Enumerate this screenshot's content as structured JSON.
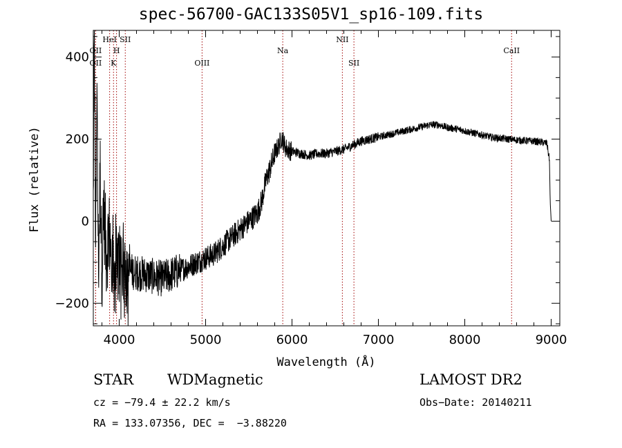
{
  "chart_data": {
    "type": "line",
    "title": "spec-56700-GAC133S05V1_sp16-109.fits",
    "xlabel": "Wavelength (Å)",
    "ylabel": "Flux (relative)",
    "xlim": [
      3700,
      9100
    ],
    "ylim": [
      -255,
      465
    ],
    "x_ticks": [
      4000,
      5000,
      6000,
      7000,
      8000,
      9000
    ],
    "y_ticks": [
      -200,
      0,
      200,
      400
    ],
    "grid": false,
    "series": [
      {
        "x": [
          3700,
          3712,
          3725,
          3740,
          3760,
          3780,
          3800,
          3820,
          3850,
          3880,
          3910,
          3950,
          4000,
          4050,
          4100,
          4200,
          4300,
          4400,
          4500,
          4600,
          4700,
          4800,
          4900,
          5000,
          5100,
          5200,
          5300,
          5400,
          5500,
          5600,
          5650,
          5700,
          5750,
          5800,
          5850,
          5880,
          5900,
          5920,
          5950,
          6000,
          6100,
          6200,
          6300,
          6400,
          6500,
          6600,
          6700,
          6800,
          6900,
          7000,
          7100,
          7200,
          7300,
          7400,
          7500,
          7600,
          7700,
          7800,
          7900,
          8000,
          8100,
          8200,
          8300,
          8400,
          8500,
          8600,
          8700,
          8800,
          8900,
          8950,
          8980,
          8990,
          9000
        ],
        "y": [
          40,
          470,
          -100,
          330,
          -120,
          120,
          -120,
          40,
          -80,
          -30,
          -60,
          -130,
          -100,
          -110,
          -120,
          -125,
          -130,
          -135,
          -140,
          -130,
          -120,
          -110,
          -100,
          -90,
          -80,
          -60,
          -40,
          -20,
          0,
          20,
          50,
          100,
          130,
          165,
          185,
          205,
          195,
          180,
          175,
          170,
          165,
          160,
          165,
          165,
          170,
          175,
          185,
          195,
          200,
          205,
          210,
          215,
          220,
          225,
          230,
          235,
          235,
          228,
          225,
          220,
          215,
          210,
          205,
          202,
          200,
          198,
          196,
          195,
          192,
          190,
          150,
          40,
          0
        ]
      }
    ],
    "lines": [
      {
        "label": "OII",
        "x": 3727,
        "row": 2
      },
      {
        "label": "OII",
        "x": 3727,
        "row": 3
      },
      {
        "label": "HeI",
        "x": 3889,
        "row": 1
      },
      {
        "label": "H",
        "x": 3969,
        "row": 2
      },
      {
        "label": "K",
        "x": 3934,
        "row": 3
      },
      {
        "label": "SII",
        "x": 4070,
        "row": 1
      },
      {
        "label": "OIII",
        "x": 4959,
        "row": 3
      },
      {
        "label": "Na",
        "x": 5893,
        "row": 2
      },
      {
        "label": "NII",
        "x": 6583,
        "row": 1
      },
      {
        "label": "SII",
        "x": 6717,
        "row": 3
      },
      {
        "label": "CaII",
        "x": 8542,
        "row": 2
      }
    ],
    "line_color": "#a00000"
  },
  "info": {
    "class": "STAR",
    "subclass": "WDMagnetic",
    "survey": "LAMOST DR2",
    "cz": "cz = −79.4 ± 22.2 km/s",
    "obsdate": "Obs−Date: 20140211",
    "radec": "RA = 133.07356, DEC =  −3.88220"
  }
}
